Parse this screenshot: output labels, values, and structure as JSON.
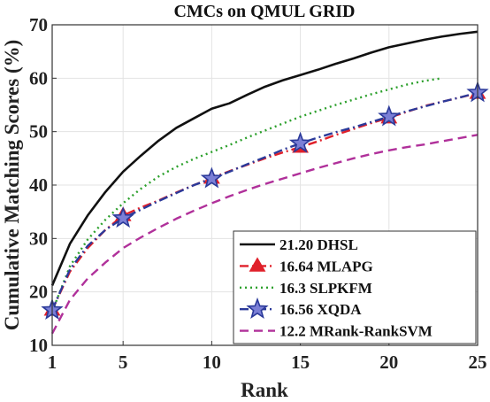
{
  "chart_data": {
    "type": "line",
    "title": "CMCs on QMUL GRID",
    "xlabel": "Rank",
    "ylabel": "Cumulative Matching Scores (%)",
    "xlim": [
      1,
      25
    ],
    "ylim": [
      10,
      70
    ],
    "xticks": [
      1,
      5,
      10,
      15,
      20,
      25
    ],
    "yticks": [
      10,
      20,
      30,
      40,
      50,
      60,
      70
    ],
    "grid": true,
    "legend_position": "bottom-right",
    "series": [
      {
        "name": "21.20 DHSL",
        "color": "#111111",
        "dash": "solid",
        "marker": "none",
        "x": [
          1,
          2,
          3,
          4,
          5,
          6,
          7,
          8,
          9,
          10,
          11,
          12,
          13,
          14,
          15,
          16,
          17,
          18,
          19,
          20,
          21,
          22,
          23,
          24,
          25
        ],
        "y": [
          21.2,
          29.0,
          34.3,
          38.7,
          42.5,
          45.5,
          48.3,
          50.7,
          52.5,
          54.3,
          55.3,
          56.9,
          58.4,
          59.6,
          60.6,
          61.6,
          62.7,
          63.7,
          64.8,
          65.8,
          66.5,
          67.2,
          67.8,
          68.3,
          68.7
        ]
      },
      {
        "name": "16.64 MLAPG",
        "color": "#e0202a",
        "dash": "dashdot",
        "marker": "triangle",
        "marker_x": [
          1,
          5,
          10,
          15,
          20,
          25
        ],
        "x": [
          1,
          2,
          3,
          4,
          5,
          6,
          7,
          8,
          9,
          10,
          11,
          12,
          13,
          14,
          15,
          16,
          17,
          18,
          19,
          20,
          21,
          22,
          23,
          24,
          25
        ],
        "y": [
          16.6,
          23.8,
          28.2,
          31.6,
          34.3,
          35.8,
          37.1,
          38.6,
          40.0,
          41.3,
          42.6,
          43.8,
          45.0,
          46.1,
          47.1,
          48.2,
          49.4,
          50.5,
          51.6,
          52.6,
          53.7,
          54.8,
          55.6,
          56.4,
          57.2
        ]
      },
      {
        "name": "16.3 SLPKFM",
        "color": "#2ca02c",
        "dash": "dotted",
        "marker": "none",
        "x": [
          1,
          2,
          3,
          4,
          5,
          6,
          7,
          8,
          9,
          10,
          11,
          12,
          13,
          14,
          15,
          16,
          17,
          18,
          19,
          20,
          21,
          22,
          23
        ],
        "y": [
          16.3,
          24.8,
          29.8,
          33.5,
          36.6,
          39.3,
          41.6,
          43.4,
          44.9,
          46.2,
          47.5,
          48.9,
          50.2,
          51.5,
          52.8,
          53.9,
          55.0,
          56.0,
          57.0,
          57.9,
          58.8,
          59.5,
          60.0
        ]
      },
      {
        "name": "16.56 XQDA",
        "color": "#2b3a9a",
        "dash": "dashdot",
        "marker": "star",
        "marker_x": [
          1,
          5,
          10,
          15,
          20,
          25
        ],
        "x": [
          1,
          2,
          3,
          4,
          5,
          6,
          7,
          8,
          9,
          10,
          11,
          12,
          13,
          14,
          15,
          16,
          17,
          18,
          19,
          20,
          21,
          22,
          23,
          24,
          25
        ],
        "y": [
          16.6,
          24.2,
          28.6,
          31.6,
          33.8,
          35.4,
          37.0,
          38.5,
          40.0,
          41.2,
          42.5,
          43.9,
          45.2,
          46.6,
          47.8,
          48.9,
          49.9,
          50.8,
          51.8,
          52.8,
          53.8,
          54.7,
          55.6,
          56.4,
          57.3
        ]
      },
      {
        "name": "12.2 MRank-RankSVM",
        "color": "#b0309a",
        "dash": "dashed",
        "marker": "none",
        "x": [
          1,
          2,
          3,
          4,
          5,
          6,
          7,
          8,
          9,
          10,
          11,
          12,
          13,
          14,
          15,
          16,
          17,
          18,
          19,
          20,
          21,
          22,
          23,
          24,
          25
        ],
        "y": [
          12.2,
          18.5,
          22.5,
          25.5,
          28.2,
          30.2,
          32.0,
          33.7,
          35.2,
          36.6,
          37.9,
          39.1,
          40.2,
          41.2,
          42.2,
          43.2,
          44.1,
          45.0,
          45.8,
          46.5,
          47.1,
          47.6,
          48.2,
          48.8,
          49.4
        ]
      }
    ]
  }
}
